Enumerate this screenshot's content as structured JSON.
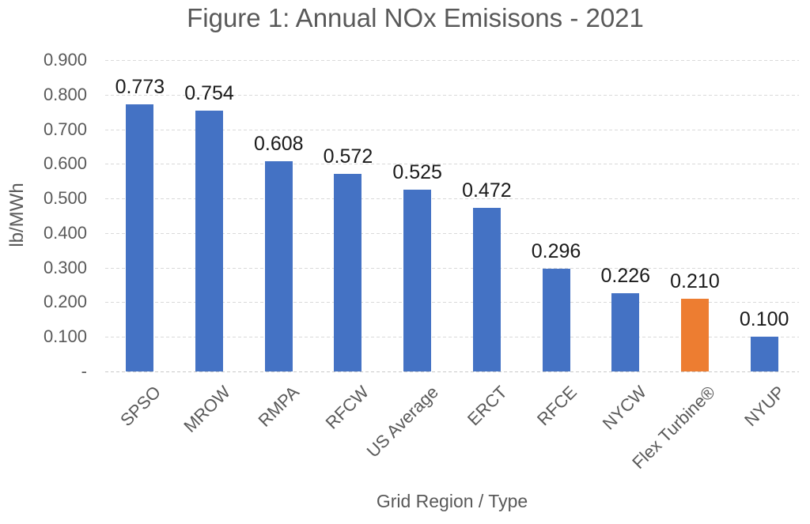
{
  "chart_data": {
    "type": "bar",
    "title": "Figure 1: Annual NOx Emisisons - 2021",
    "xlabel": "Grid Region / Type",
    "ylabel": "lb/MWh",
    "categories": [
      "SPSO",
      "MROW",
      "RMPA",
      "RFCW",
      "US Average",
      "ERCT",
      "RFCE",
      "NYCW",
      "Flex Turbine®",
      "NYUP"
    ],
    "values": [
      0.773,
      0.754,
      0.608,
      0.572,
      0.525,
      0.472,
      0.296,
      0.226,
      0.21,
      0.1
    ],
    "data_labels": [
      "0.773",
      "0.754",
      "0.608",
      "0.572",
      "0.525",
      "0.472",
      "0.296",
      "0.226",
      "0.210",
      "0.100"
    ],
    "ylim": [
      0,
      0.9
    ],
    "yticks": [
      {
        "value": 0.9,
        "label": "0.900"
      },
      {
        "value": 0.8,
        "label": "0.800"
      },
      {
        "value": 0.7,
        "label": "0.700"
      },
      {
        "value": 0.6,
        "label": "0.600"
      },
      {
        "value": 0.5,
        "label": "0.500"
      },
      {
        "value": 0.4,
        "label": "0.400"
      },
      {
        "value": 0.3,
        "label": "0.300"
      },
      {
        "value": 0.2,
        "label": "0.200"
      },
      {
        "value": 0.1,
        "label": "0.100"
      },
      {
        "value": 0.0,
        "label": "-"
      }
    ],
    "grid": true,
    "legend": "none",
    "highlight_index": 8,
    "colors": {
      "bar": "#4472C4",
      "highlight_bar": "#ED7D31",
      "gridline": "#d9d9d9",
      "title_text": "#595959",
      "axis_text": "#595959",
      "data_label_text": "#1a1a1a"
    }
  }
}
